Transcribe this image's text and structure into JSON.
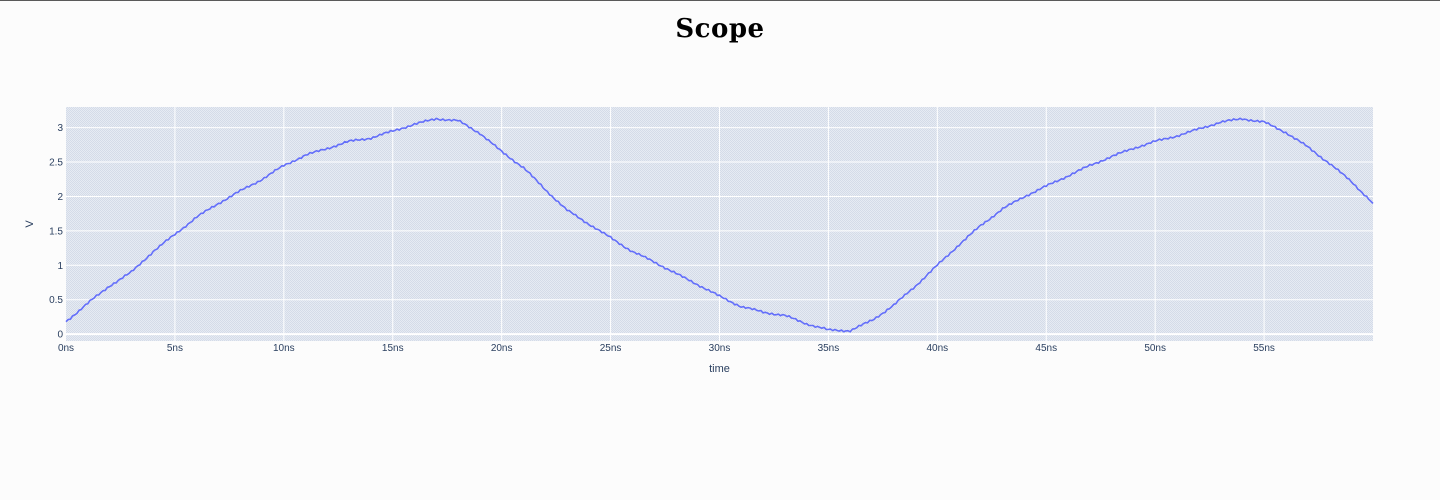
{
  "page": {
    "title": "Scope"
  },
  "chart_data": {
    "type": "line",
    "title": "Scope",
    "xlabel": "time",
    "ylabel": "V",
    "x_unit": "ns",
    "xlim": [
      0,
      60
    ],
    "ylim": [
      -0.1,
      3.3
    ],
    "xticks": [
      0,
      5,
      10,
      15,
      20,
      25,
      30,
      35,
      40,
      45,
      50,
      55
    ],
    "xtick_labels": [
      "0ns",
      "5ns",
      "10ns",
      "15ns",
      "20ns",
      "25ns",
      "30ns",
      "35ns",
      "40ns",
      "45ns",
      "50ns",
      "55ns"
    ],
    "yticks": [
      0,
      0.5,
      1,
      1.5,
      2,
      2.5,
      3
    ],
    "ytick_labels": [
      "0",
      "0.5",
      "1",
      "1.5",
      "2",
      "2.5",
      "3"
    ],
    "grid": true,
    "colors": {
      "line": "#636efa",
      "plot_bg": "#e5ecf6",
      "grid": "#ffffff",
      "text": "#2a3f5f"
    },
    "series": [
      {
        "x": [
          0,
          1,
          2,
          3,
          4,
          5,
          6,
          7,
          8,
          9,
          10,
          11,
          12,
          13,
          14,
          15,
          16,
          17,
          18,
          19,
          20,
          21,
          22,
          23,
          24,
          25,
          26,
          27,
          28,
          29,
          30,
          31,
          32,
          33,
          34,
          35,
          36,
          37,
          38,
          39,
          40,
          41,
          42,
          43,
          44,
          45,
          46,
          47,
          48,
          49,
          50,
          51,
          52,
          53,
          54,
          55,
          56,
          57,
          58,
          59,
          60
        ],
        "values": [
          0.18,
          0.45,
          0.7,
          0.9,
          1.2,
          1.45,
          1.7,
          1.9,
          2.08,
          2.25,
          2.45,
          2.6,
          2.7,
          2.8,
          2.85,
          2.95,
          3.05,
          3.13,
          3.1,
          2.92,
          2.65,
          2.42,
          2.1,
          1.8,
          1.6,
          1.4,
          1.2,
          1.05,
          0.88,
          0.72,
          0.55,
          0.4,
          0.32,
          0.27,
          0.15,
          0.06,
          0.05,
          0.2,
          0.42,
          0.7,
          1.0,
          1.3,
          1.58,
          1.82,
          2.0,
          2.15,
          2.3,
          2.45,
          2.58,
          2.7,
          2.8,
          2.88,
          2.98,
          3.08,
          3.13,
          3.08,
          2.93,
          2.72,
          2.48,
          2.22,
          1.9
        ]
      }
    ]
  }
}
